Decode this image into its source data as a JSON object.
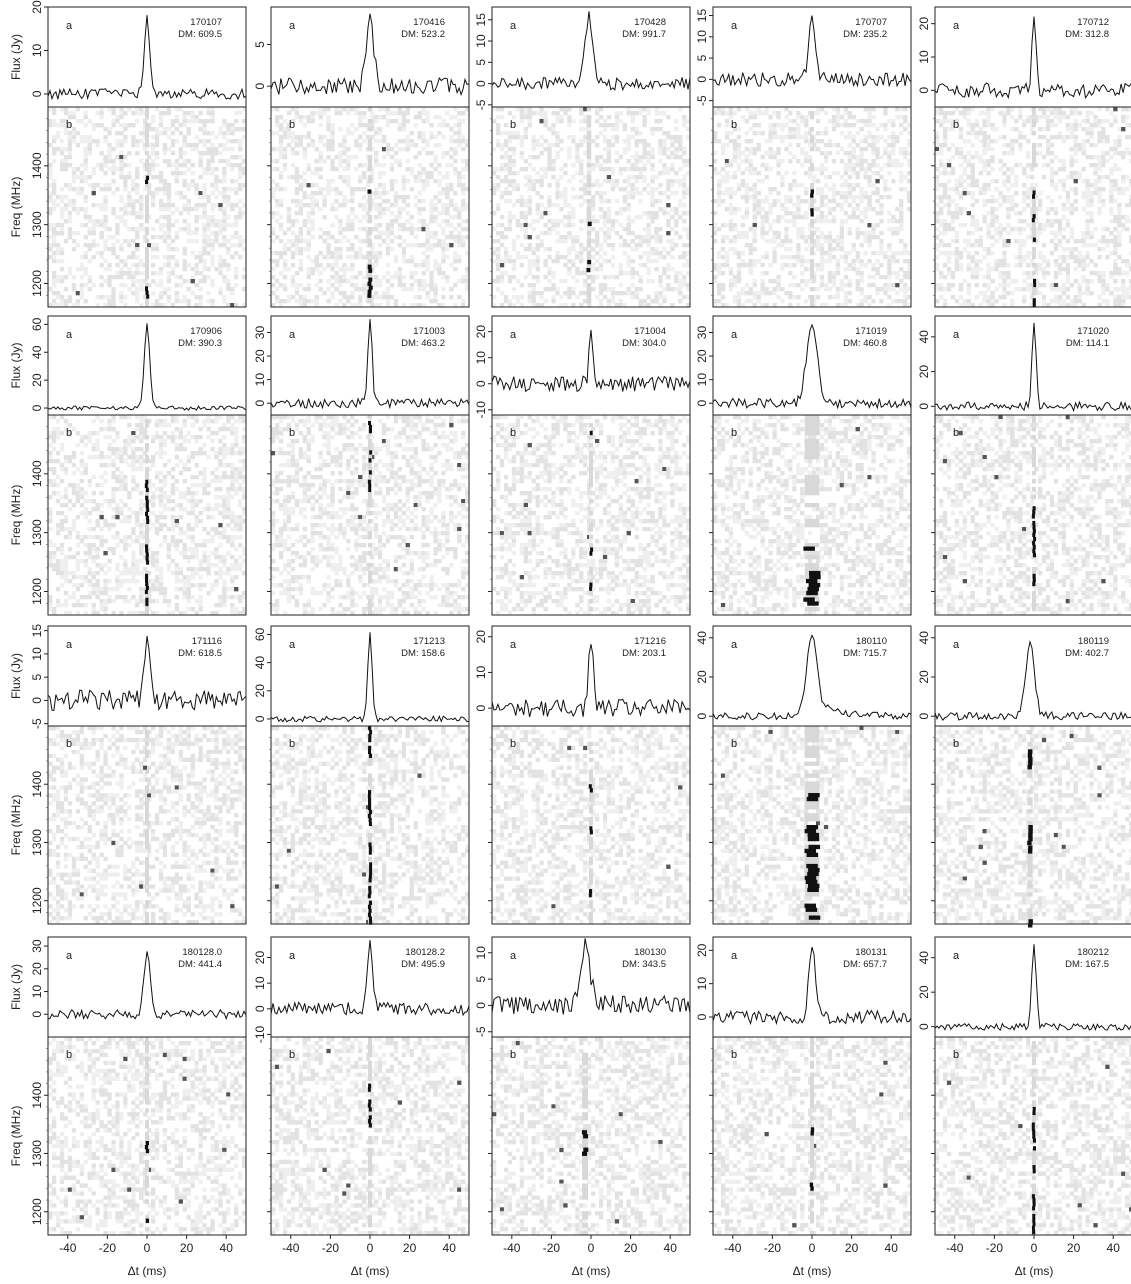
{
  "figure": {
    "flux_axis_label": "Flux (Jy)",
    "freq_axis_label": "Freq (MHz)",
    "time_axis_label": "Δt (ms)",
    "profile_panel_letter": "a",
    "waterfall_panel_letter": "b",
    "dm_prefix": "DM: "
  },
  "chart_data": {
    "type": "multi-panel burst profiles and dynamic spectra",
    "x_ticks": [
      -40,
      -20,
      0,
      20,
      40
    ],
    "xlim": [
      -50,
      50
    ],
    "freq_ticks": [
      1200,
      1300,
      1400
    ],
    "freq_range": [
      1160,
      1500
    ],
    "bursts": [
      {
        "id": "170107",
        "dm": "609.5",
        "flux_ticks": [
          0,
          10,
          20
        ],
        "ylim": [
          -3,
          20
        ],
        "peak": 17.5,
        "width_ms": 2.5,
        "tail_ms": 0,
        "noise": 1.2,
        "offset_ms": 0,
        "bright_bands": [
          [
            1370,
            1390
          ],
          [
            1180,
            1195
          ]
        ],
        "smear": 0
      },
      {
        "id": "170416",
        "dm": "523.2",
        "flux_ticks": [
          0,
          5
        ],
        "ylim": [
          -2.5,
          9.5
        ],
        "peak": 7.8,
        "width_ms": 3.5,
        "tail_ms": 0,
        "noise": 1.0,
        "offset_ms": 0,
        "bright_bands": [
          [
            1350,
            1360
          ],
          [
            1215,
            1232
          ],
          [
            1180,
            1210
          ]
        ],
        "smear": 0
      },
      {
        "id": "170428",
        "dm": "991.7",
        "flux_ticks": [
          -5,
          0,
          5,
          10,
          15
        ],
        "ylim": [
          -5.5,
          18
        ],
        "peak": 15.5,
        "width_ms": 3.5,
        "tail_ms": 0,
        "noise": 1.5,
        "offset_ms": -1,
        "bright_bands": [
          [
            1300,
            1305
          ],
          [
            1225,
            1240
          ]
        ],
        "smear": 0
      },
      {
        "id": "170707",
        "dm": "235.2",
        "flux_ticks": [
          -5,
          0,
          5,
          10,
          15
        ],
        "ylim": [
          -6.5,
          17
        ],
        "peak": 15.5,
        "width_ms": 3,
        "tail_ms": 0,
        "noise": 1.6,
        "offset_ms": 0,
        "bright_bands": [
          [
            1350,
            1360
          ],
          [
            1320,
            1328
          ]
        ],
        "smear": 0
      },
      {
        "id": "170712",
        "dm": "312.8",
        "flux_ticks": [
          0,
          10,
          20
        ],
        "ylim": [
          -5,
          25
        ],
        "peak": 22,
        "width_ms": 1.8,
        "tail_ms": 0,
        "noise": 2.2,
        "offset_ms": 0,
        "bright_bands": [
          [
            1350,
            1358
          ],
          [
            1310,
            1318
          ],
          [
            1270,
            1278
          ],
          [
            1200,
            1208
          ],
          [
            1165,
            1175
          ]
        ],
        "smear": 0
      },
      {
        "id": "170906",
        "dm": "390.3",
        "flux_ticks": [
          0,
          20,
          40,
          60
        ],
        "ylim": [
          -5,
          66
        ],
        "peak": 60,
        "width_ms": 2.5,
        "tail_ms": 0,
        "noise": 1.5,
        "offset_ms": 0,
        "bright_bands": [
          [
            1320,
            1390
          ],
          [
            1250,
            1280
          ],
          [
            1180,
            1230
          ]
        ],
        "smear": 0
      },
      {
        "id": "171003",
        "dm": "463.2",
        "flux_ticks": [
          0,
          10,
          20,
          30
        ],
        "ylim": [
          -5,
          37
        ],
        "peak": 34,
        "width_ms": 2,
        "tail_ms": 0,
        "noise": 2.0,
        "offset_ms": 0,
        "bright_bands": [
          [
            1470,
            1490
          ],
          [
            1400,
            1440
          ],
          [
            1375,
            1390
          ]
        ],
        "smear": 0
      },
      {
        "id": "171004",
        "dm": "304.0",
        "flux_ticks": [
          -10,
          0,
          10,
          20
        ],
        "ylim": [
          -12,
          26
        ],
        "peak": 23,
        "width_ms": 1.5,
        "tail_ms": 0,
        "noise": 3.0,
        "offset_ms": 0,
        "bright_bands": [
          [
            1470,
            1480
          ],
          [
            1265,
            1275
          ],
          [
            1205,
            1215
          ]
        ],
        "smear": 0
      },
      {
        "id": "171019",
        "dm": "460.8",
        "flux_ticks": [
          0,
          10,
          20,
          30
        ],
        "ylim": [
          -5,
          37
        ],
        "peak": 34,
        "width_ms": 5,
        "tail_ms": 1,
        "noise": 2.0,
        "offset_ms": 0,
        "bright_bands": [
          [
            1265,
            1290
          ],
          [
            1195,
            1235
          ],
          [
            1165,
            1190
          ]
        ],
        "smear": 1
      },
      {
        "id": "171020",
        "dm": "114.1",
        "flux_ticks": [
          0,
          20,
          40
        ],
        "ylim": [
          -5,
          52
        ],
        "peak": 48,
        "width_ms": 1.8,
        "tail_ms": 0,
        "noise": 2.5,
        "offset_ms": 0,
        "bright_bands": [
          [
            1325,
            1345
          ],
          [
            1265,
            1320
          ],
          [
            1210,
            1230
          ]
        ],
        "smear": 0
      },
      {
        "id": "171116",
        "dm": "618.5",
        "flux_ticks": [
          -5,
          0,
          5,
          10,
          15
        ],
        "ylim": [
          -5.5,
          16
        ],
        "peak": 13,
        "width_ms": 3,
        "tail_ms": 0,
        "noise": 2.2,
        "offset_ms": 0,
        "bright_bands": [],
        "smear": 0
      },
      {
        "id": "171213",
        "dm": "158.6",
        "flux_ticks": [
          0,
          20,
          40,
          60
        ],
        "ylim": [
          -5,
          66
        ],
        "peak": 60,
        "width_ms": 2,
        "tail_ms": 0,
        "noise": 2.0,
        "offset_ms": 0,
        "bright_bands": [
          [
            1440,
            1500
          ],
          [
            1330,
            1390
          ],
          [
            1210,
            1300
          ],
          [
            1160,
            1200
          ]
        ],
        "smear": 0
      },
      {
        "id": "171216",
        "dm": "203.1",
        "flux_ticks": [
          0,
          10,
          20
        ],
        "ylim": [
          -5,
          23
        ],
        "peak": 20,
        "width_ms": 2,
        "tail_ms": 0,
        "noise": 2.5,
        "offset_ms": 0,
        "bright_bands": [
          [
            1390,
            1400
          ],
          [
            1320,
            1328
          ],
          [
            1210,
            1220
          ]
        ],
        "smear": 0
      },
      {
        "id": "180110",
        "dm": "715.7",
        "flux_ticks": [
          0,
          20,
          40
        ],
        "ylim": [
          -5,
          46
        ],
        "peak": 42,
        "width_ms": 5,
        "tail_ms": 8,
        "noise": 1.8,
        "offset_ms": 0,
        "bright_bands": [
          [
            1375,
            1385
          ],
          [
            1280,
            1330
          ],
          [
            1220,
            1270
          ],
          [
            1170,
            1195
          ]
        ],
        "smear": 1
      },
      {
        "id": "180119",
        "dm": "402.7",
        "flux_ticks": [
          0,
          20,
          40
        ],
        "ylim": [
          -5,
          46
        ],
        "peak": 38,
        "width_ms": 4,
        "tail_ms": 3,
        "noise": 2.0,
        "offset_ms": -2,
        "bright_bands": [
          [
            1420,
            1460
          ],
          [
            1300,
            1330
          ],
          [
            1285,
            1295
          ],
          [
            1160,
            1175
          ]
        ],
        "smear": 0
      },
      {
        "id": "180128.0",
        "dm": "441.4",
        "flux_ticks": [
          0,
          10,
          20,
          30
        ],
        "ylim": [
          -10,
          34
        ],
        "peak": 27,
        "width_ms": 3,
        "tail_ms": 0,
        "noise": 2.0,
        "offset_ms": 0,
        "bright_bands": [
          [
            1305,
            1335
          ],
          [
            1185,
            1195
          ]
        ],
        "smear": 0
      },
      {
        "id": "180128.2",
        "dm": "495.9",
        "flux_ticks": [
          -10,
          0,
          10,
          20
        ],
        "ylim": [
          -11,
          28
        ],
        "peak": 25,
        "width_ms": 2.5,
        "tail_ms": 0,
        "noise": 2.5,
        "offset_ms": 0,
        "bright_bands": [
          [
            1350,
            1420
          ]
        ],
        "smear": 0
      },
      {
        "id": "180130",
        "dm": "343.5",
        "flux_ticks": [
          -5,
          0,
          5,
          10
        ],
        "ylim": [
          -6,
          13
        ],
        "peak": 11.5,
        "width_ms": 4.5,
        "tail_ms": 4,
        "noise": 1.8,
        "offset_ms": -3,
        "bright_bands": [
          [
            1330,
            1340
          ],
          [
            1300,
            1310
          ]
        ],
        "smear": 0
      },
      {
        "id": "180131",
        "dm": "657.7",
        "flux_ticks": [
          0,
          10,
          20
        ],
        "ylim": [
          -6,
          24
        ],
        "peak": 22,
        "width_ms": 3,
        "tail_ms": 0,
        "noise": 2.0,
        "offset_ms": 0,
        "bright_bands": [
          [
            1335,
            1345
          ],
          [
            1240,
            1250
          ]
        ],
        "smear": 0
      },
      {
        "id": "180212",
        "dm": "167.5",
        "flux_ticks": [
          0,
          20,
          40
        ],
        "ylim": [
          -6,
          52
        ],
        "peak": 48,
        "width_ms": 2,
        "tail_ms": 0,
        "noise": 2.0,
        "offset_ms": 0,
        "bright_bands": [
          [
            1370,
            1380
          ],
          [
            1300,
            1360
          ],
          [
            1270,
            1280
          ],
          [
            1165,
            1230
          ]
        ],
        "smear": 0
      }
    ]
  }
}
